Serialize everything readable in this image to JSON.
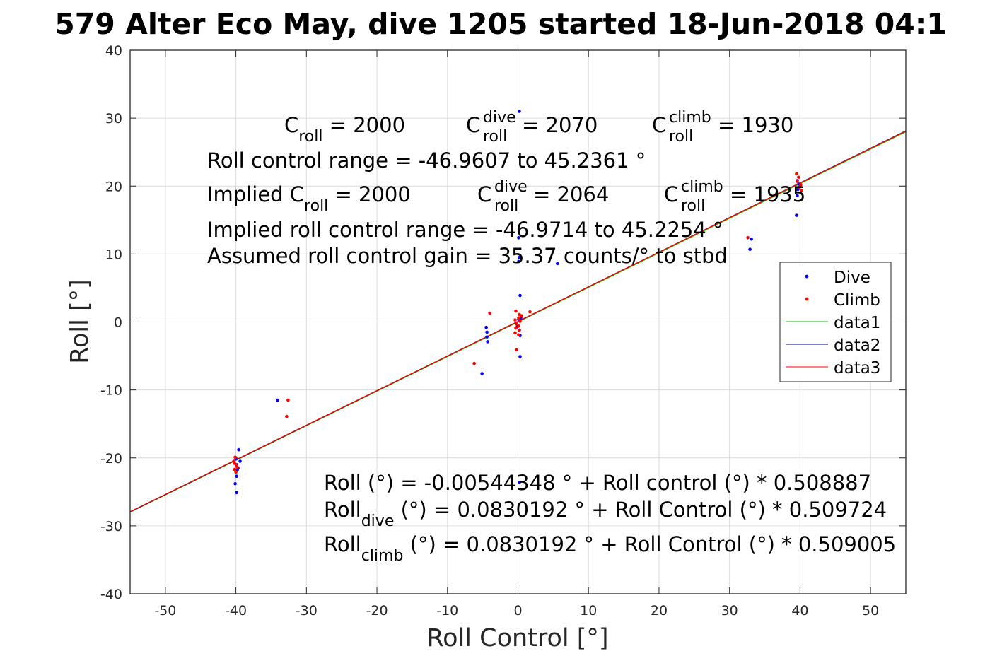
{
  "chart_data": {
    "type": "scatter",
    "title": "579 Alter Eco May, dive 1205 started 18-Jun-2018 04:1",
    "xlabel": "Roll Control [°]",
    "ylabel": "Roll [°]",
    "xlim": [
      -55,
      55
    ],
    "ylim": [
      -40,
      40
    ],
    "xticks": [
      -50,
      -40,
      -30,
      -20,
      -10,
      0,
      10,
      20,
      30,
      40,
      50
    ],
    "yticks": [
      -40,
      -30,
      -20,
      -10,
      0,
      10,
      20,
      30,
      40
    ],
    "xtick_labels": [
      "-50",
      "-40",
      "-30",
      "-20",
      "-10",
      "0",
      "10",
      "20",
      "30",
      "40",
      "50"
    ],
    "ytick_labels": [
      "-40",
      "-30",
      "-20",
      "-10",
      "0",
      "10",
      "20",
      "30",
      "40"
    ],
    "grid": true,
    "legend_position": "right",
    "series": [
      {
        "name": "Dive",
        "kind": "points",
        "color": "#0000ff",
        "points": [
          [
            0.2,
            31
          ],
          [
            0.1,
            12.4
          ],
          [
            0.2,
            9.5
          ],
          [
            0.1,
            8.9
          ],
          [
            5.6,
            8.6
          ],
          [
            0.3,
            3.9
          ],
          [
            33.1,
            12.2
          ],
          [
            32.9,
            10.7
          ],
          [
            39.5,
            15.7
          ],
          [
            39.6,
            18.6
          ],
          [
            39.7,
            19.5
          ],
          [
            39.8,
            20.3
          ],
          [
            39.6,
            20.8
          ],
          [
            40,
            19.9
          ],
          [
            -4.5,
            -0.8
          ],
          [
            -4.4,
            -1.5
          ],
          [
            -4.4,
            -2.2
          ],
          [
            -4.3,
            -2.9
          ],
          [
            -5.1,
            -7.6
          ],
          [
            0.3,
            -2
          ],
          [
            0.3,
            -5.1
          ],
          [
            0.1,
            0.4
          ],
          [
            -0.1,
            -0.7
          ],
          [
            0.2,
            -1.2
          ],
          [
            0.4,
            0.6
          ],
          [
            -34.1,
            -11.5
          ],
          [
            -39.6,
            -18.8
          ],
          [
            -40,
            -20.1
          ],
          [
            -39.9,
            -21
          ],
          [
            -39.8,
            -21.8
          ],
          [
            -39.9,
            -22.7
          ],
          [
            -40.1,
            -23.8
          ],
          [
            -39.9,
            -25.1
          ],
          [
            -39.4,
            -20.5
          ],
          [
            -39.7,
            -21.5
          ],
          [
            0.2,
            -23.6
          ]
        ]
      },
      {
        "name": "Climb",
        "kind": "points",
        "color": "#ff0000",
        "points": [
          [
            -0.3,
            1.6
          ],
          [
            0.2,
            1.1
          ],
          [
            0.5,
            0.9
          ],
          [
            0.1,
            0.6
          ],
          [
            -0.4,
            0.3
          ],
          [
            0.3,
            0.1
          ],
          [
            -0.2,
            -0.3
          ],
          [
            0.1,
            -0.6
          ],
          [
            -0.3,
            -0.9
          ],
          [
            0.2,
            -1.2
          ],
          [
            -0.4,
            -1.6
          ],
          [
            0.1,
            -1.9
          ],
          [
            -0.2,
            -4.1
          ],
          [
            1.7,
            1.5
          ],
          [
            -4,
            1.3
          ],
          [
            -6.2,
            -6.1
          ],
          [
            32.6,
            12.4
          ],
          [
            39.5,
            21.8
          ],
          [
            39.8,
            21.3
          ],
          [
            39.6,
            20.7
          ],
          [
            40.1,
            20.2
          ],
          [
            39.9,
            19.8
          ],
          [
            40.2,
            19.3
          ],
          [
            -32.6,
            -11.5
          ],
          [
            -32.8,
            -13.9
          ],
          [
            -40.1,
            -19.9
          ],
          [
            -40.3,
            -20.5
          ],
          [
            -39.9,
            -21.1
          ],
          [
            -40.2,
            -21.7
          ],
          [
            -40,
            -22.1
          ],
          [
            -40.2,
            -20.8
          ],
          [
            -39.8,
            -21.4
          ]
        ]
      },
      {
        "name": "data1",
        "kind": "line",
        "color": "#00cc00",
        "x": [
          -55,
          55
        ],
        "y": [
          -27.993,
          27.983
        ]
      },
      {
        "name": "data2",
        "kind": "line",
        "color": "#000080",
        "x": [
          -55,
          55
        ],
        "y": [
          -27.952,
          28.118
        ]
      },
      {
        "name": "data3",
        "kind": "line",
        "color": "#ff0000",
        "x": [
          -55,
          55
        ],
        "y": [
          -27.912,
          28.078
        ]
      }
    ],
    "annotations": {
      "top": {
        "line1": {
          "a_pre": "C",
          "a_sub": "roll",
          "a_post": " = 2000",
          "b_pre": "C",
          "b_sup": "dive",
          "b_sub": "roll",
          "b_post": " = 2070",
          "c_pre": "C",
          "c_sup": "climb",
          "c_sub": "roll",
          "c_post": " = 1930"
        },
        "line2": "Roll control range = -46.9607 to 45.2361 °",
        "line3": {
          "a_pre": "Implied C",
          "a_sub": "roll",
          "a_post": " = 2000",
          "b_pre": "C",
          "b_sup": "dive",
          "b_sub": "roll",
          "b_post": " = 2064",
          "c_pre": "C",
          "c_sup": "climb",
          "c_sub": "roll",
          "c_post": " = 1935"
        },
        "line4": "Implied roll control range = -46.9714 to 45.2254 °",
        "line5": "Assumed roll control gain = 35.37 counts/° to stbd"
      },
      "bottom": {
        "line1": "Roll (°) = -0.00544348 ° + Roll control (°) * 0.508887",
        "line2": {
          "pre": "Roll",
          "sub": "dive",
          "post": " (°) = 0.0830192 ° + Roll Control (°) * 0.509724"
        },
        "line3": {
          "pre": "Roll",
          "sub": "climb",
          "post": " (°) = 0.0830192 ° + Roll Control (°) * 0.509005"
        }
      }
    }
  }
}
